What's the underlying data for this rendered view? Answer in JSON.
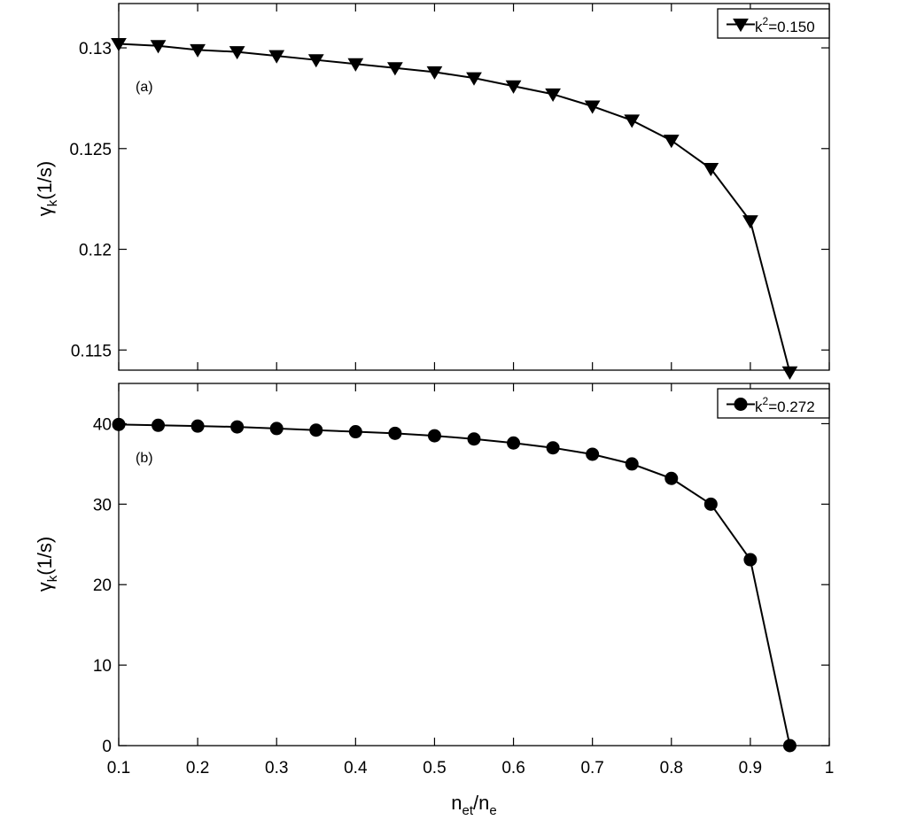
{
  "chart_data": [
    {
      "type": "line",
      "panel_label": "(a)",
      "ylabel_base": "γ",
      "ylabel_sub": "k",
      "ylabel_unit": "(1/s)",
      "xlabel_base": "",
      "xlabel_sub1": "",
      "xlabel_mid": "",
      "xlabel_sub2": "",
      "xlim": [
        0.1,
        1.0
      ],
      "ylim": [
        0.114,
        0.1322
      ],
      "x_ticks": [],
      "y_ticks": [
        0.115,
        0.12,
        0.125,
        0.13
      ],
      "y_tick_labels": [
        "0.115",
        "0.12",
        "0.125",
        "0.13"
      ],
      "legend": {
        "base": "k",
        "sup": "2",
        "value": "=0.150",
        "placement": "top-right",
        "marker": "triangle-down"
      },
      "series": [
        {
          "name": "k2=0.150",
          "x": [
            0.1,
            0.15,
            0.2,
            0.25,
            0.3,
            0.35,
            0.4,
            0.45,
            0.5,
            0.55,
            0.6,
            0.65,
            0.7,
            0.75,
            0.8,
            0.85,
            0.9,
            0.95
          ],
          "y": [
            0.1302,
            0.1301,
            0.1299,
            0.1298,
            0.1296,
            0.1294,
            0.1292,
            0.129,
            0.1288,
            0.1285,
            0.1281,
            0.1277,
            0.1271,
            0.1264,
            0.1254,
            0.124,
            0.1214,
            0.1139
          ]
        }
      ]
    },
    {
      "type": "line",
      "panel_label": "(b)",
      "ylabel_base": "γ",
      "ylabel_sub": "k",
      "ylabel_unit": "(1/s)",
      "xlabel_base": "n",
      "xlabel_sub1": "et",
      "xlabel_mid": "/n",
      "xlabel_sub2": "e",
      "xlim": [
        0.1,
        1.0
      ],
      "ylim": [
        0,
        45
      ],
      "x_ticks": [
        0.1,
        0.2,
        0.3,
        0.4,
        0.5,
        0.6,
        0.7,
        0.8,
        0.9,
        1.0
      ],
      "x_tick_labels": [
        "0.1",
        "0.2",
        "0.3",
        "0.4",
        "0.5",
        "0.6",
        "0.7",
        "0.8",
        "0.9",
        "1"
      ],
      "y_ticks": [
        0,
        10,
        20,
        30,
        40
      ],
      "y_tick_labels": [
        "0",
        "10",
        "20",
        "30",
        "40"
      ],
      "legend": {
        "base": "k",
        "sup": "2",
        "value": "=0.272",
        "placement": "top-right",
        "marker": "circle"
      },
      "series": [
        {
          "name": "k2=0.272",
          "x": [
            0.1,
            0.15,
            0.2,
            0.25,
            0.3,
            0.35,
            0.4,
            0.45,
            0.5,
            0.55,
            0.6,
            0.65,
            0.7,
            0.75,
            0.8,
            0.85,
            0.9,
            0.95
          ],
          "y": [
            39.9,
            39.8,
            39.7,
            39.6,
            39.4,
            39.2,
            39.0,
            38.8,
            38.5,
            38.1,
            37.6,
            37.0,
            36.2,
            35.0,
            33.2,
            30.0,
            23.1,
            0.0
          ]
        }
      ]
    }
  ]
}
